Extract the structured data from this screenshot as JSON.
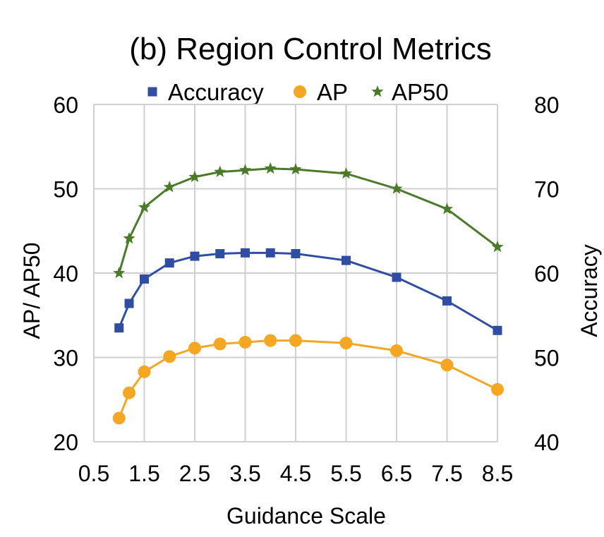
{
  "chart_data": {
    "type": "line",
    "title": "(b) Region Control Metrics",
    "xlabel": "Guidance Scale",
    "ylabel_left": "AP/ AP50",
    "ylabel_right": "Accuracy",
    "xlim": [
      0.5,
      8.5
    ],
    "ylim_left": [
      20,
      60
    ],
    "ylim_right": [
      40,
      80
    ],
    "x_ticks": [
      "0.5",
      "1.5",
      "2.5",
      "3.5",
      "4.5",
      "5.5",
      "6.5",
      "7.5",
      "8.5"
    ],
    "y_ticks_left": [
      "20",
      "30",
      "40",
      "50",
      "60"
    ],
    "y_ticks_right": [
      "40",
      "50",
      "60",
      "70",
      "80"
    ],
    "grid": true,
    "legend_position": "top",
    "x": [
      1.0,
      1.2,
      1.5,
      2.0,
      2.5,
      3.0,
      3.5,
      4.0,
      4.5,
      5.5,
      6.5,
      7.5,
      8.5
    ],
    "series": [
      {
        "name": "Accuracy",
        "axis": "right",
        "marker": "square",
        "color": "#2f4da3",
        "values": [
          53.5,
          56.4,
          59.3,
          61.2,
          62.0,
          62.3,
          62.4,
          62.4,
          62.3,
          61.5,
          59.5,
          56.7,
          53.2
        ]
      },
      {
        "name": "AP",
        "axis": "left",
        "marker": "circle",
        "color": "#f5a623",
        "values": [
          22.8,
          25.8,
          28.3,
          30.1,
          31.1,
          31.6,
          31.8,
          32.0,
          32.0,
          31.7,
          30.8,
          29.1,
          26.2
        ]
      },
      {
        "name": "AP50",
        "axis": "left",
        "marker": "star",
        "color": "#4a7b29",
        "values": [
          40.0,
          44.1,
          47.8,
          50.2,
          51.4,
          52.0,
          52.2,
          52.4,
          52.3,
          51.8,
          50.0,
          47.6,
          43.1
        ]
      }
    ]
  }
}
